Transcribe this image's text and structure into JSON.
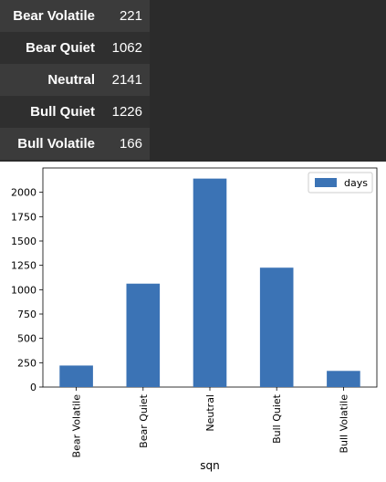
{
  "table": {
    "rows": [
      {
        "label": "Bear Volatile",
        "value": "221"
      },
      {
        "label": "Bear Quiet",
        "value": "1062"
      },
      {
        "label": "Neutral",
        "value": "2141"
      },
      {
        "label": "Bull Quiet",
        "value": "1226"
      },
      {
        "label": "Bull Volatile",
        "value": "166"
      }
    ]
  },
  "chart_data": {
    "type": "bar",
    "categories": [
      "Bear Volatile",
      "Bear Quiet",
      "Neutral",
      "Bull Quiet",
      "Bull Volatile"
    ],
    "series": [
      {
        "name": "days",
        "values": [
          221,
          1062,
          2141,
          1226,
          166
        ]
      }
    ],
    "xlabel": "sqn",
    "ylabel": "",
    "ylim": [
      0,
      2250
    ],
    "yticks": [
      0,
      250,
      500,
      750,
      1000,
      1250,
      1500,
      1750,
      2000
    ],
    "legend": "top-right",
    "grid": false,
    "colors": {
      "bar": "#3b73b5"
    }
  }
}
